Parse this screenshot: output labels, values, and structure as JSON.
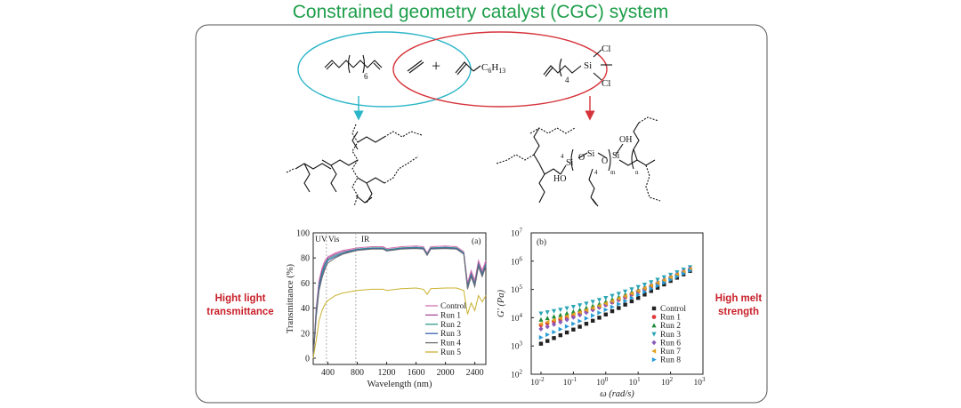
{
  "title": "Constrained geometry catalyst (CGC) system",
  "left_label": [
    "Hight light",
    "transmittance"
  ],
  "right_label": [
    "High melt",
    "strength"
  ],
  "monomers": {
    "diene_sub": "6",
    "hexene_label": "C",
    "hexene_sub": "6",
    "hexene_h": "H",
    "hexene_hsub": "13",
    "silane_sub": "4",
    "silane_si": "Si",
    "silane_cl1": "Cl",
    "silane_cl2": "Cl",
    "plus": "+"
  },
  "structure_right": {
    "si": "Si",
    "o": "O",
    "oh": "OH",
    "ho": "HO",
    "n4a": "4",
    "n4b": "4",
    "m": "m",
    "n": "n"
  },
  "colors": {
    "title": "#1d9e4a",
    "cyan": "#2bb5c8",
    "red": "#d6333a",
    "side_labels": "#c8202a"
  },
  "chart_data": [
    {
      "type": "line",
      "panel_label": "(a)",
      "xlabel": "Wavelength (nm)",
      "ylabel": "Transmittance (%)",
      "xlim": [
        200,
        2550
      ],
      "ylim": [
        -5,
        100
      ],
      "xticks": [
        400,
        800,
        1200,
        1600,
        2000,
        2400
      ],
      "yticks": [
        0,
        20,
        40,
        60,
        80,
        100
      ],
      "region_labels": [
        "UV",
        "Vis",
        "IR"
      ],
      "region_boundaries": [
        380,
        780
      ],
      "legend_position": "bottom-right",
      "x": [
        200,
        240,
        280,
        320,
        360,
        400,
        500,
        600,
        800,
        1000,
        1150,
        1200,
        1400,
        1600,
        1700,
        1750,
        1800,
        2000,
        2150,
        2200,
        2250,
        2300,
        2350,
        2400,
        2450,
        2500,
        2550
      ],
      "series": [
        {
          "name": "Control",
          "color": "#d46fb0",
          "values": [
            0,
            40,
            62,
            72,
            78,
            81,
            84,
            86,
            88,
            89,
            89,
            87.5,
            89,
            89.5,
            89,
            84,
            89,
            89.5,
            89,
            87,
            85,
            60,
            70,
            62,
            78,
            70,
            78
          ]
        },
        {
          "name": "Run 1",
          "color": "#a14a9a",
          "values": [
            0,
            38,
            60,
            70,
            76,
            80,
            83,
            85,
            87,
            88,
            88,
            86.5,
            88,
            88.5,
            88,
            83,
            88,
            88.5,
            88,
            86,
            84,
            58,
            68,
            60,
            76,
            68,
            76
          ]
        },
        {
          "name": "Run 2",
          "color": "#2f9c8c",
          "values": [
            0,
            36,
            58,
            68,
            75,
            79,
            82,
            84,
            87,
            88,
            88,
            86.5,
            88,
            88.5,
            88,
            83,
            88,
            88.5,
            88,
            86,
            84,
            57,
            67,
            59,
            75,
            67,
            75
          ]
        },
        {
          "name": "Run 3",
          "color": "#3b62b0",
          "values": [
            0,
            34,
            56,
            66,
            73,
            78,
            81,
            83.5,
            86.5,
            87.5,
            87.5,
            86,
            87.5,
            88,
            87.5,
            82.5,
            87.5,
            88,
            87.5,
            85.5,
            83.5,
            56,
            66,
            58,
            74,
            66,
            74
          ]
        },
        {
          "name": "Run 4",
          "color": "#6e6e6e",
          "values": [
            0,
            32,
            54,
            64,
            71,
            76,
            80,
            83,
            86,
            87,
            87,
            85.5,
            87,
            87.5,
            87,
            82,
            87,
            87.5,
            87,
            85,
            83,
            55,
            65,
            57,
            73,
            65,
            73
          ]
        },
        {
          "name": "Run 5",
          "color": "#c9b12e",
          "values": [
            0,
            14,
            30,
            38,
            43,
            46,
            50,
            52,
            54,
            55,
            55,
            54,
            55.5,
            56,
            55,
            51,
            55.5,
            56,
            56,
            55,
            54,
            35,
            44,
            38,
            50,
            45,
            50
          ]
        }
      ]
    },
    {
      "type": "scatter",
      "panel_label": "(b)",
      "xlabel": "ω (rad/s)",
      "ylabel": "G' (Pa)",
      "xscale": "log",
      "yscale": "log",
      "xlim": [
        0.005,
        1000
      ],
      "ylim": [
        100,
        10000000
      ],
      "xticks_exp": [
        -2,
        -1,
        0,
        1,
        2,
        3
      ],
      "yticks_exp": [
        2,
        3,
        4,
        5,
        6,
        7
      ],
      "tick_base": "10",
      "legend_position": "bottom-right",
      "x": [
        0.01,
        0.0158,
        0.0251,
        0.0398,
        0.0631,
        0.1,
        0.158,
        0.251,
        0.398,
        0.631,
        1,
        1.58,
        2.51,
        3.98,
        6.31,
        10,
        15.8,
        25.1,
        39.8,
        63.1,
        100,
        158,
        251,
        398
      ],
      "series": [
        {
          "name": "Control",
          "marker": "square",
          "color": "#222222",
          "values": [
            1200,
            1500,
            1900,
            2400,
            3000,
            3800,
            4800,
            6100,
            7800,
            10000,
            13000,
            17000,
            22000,
            29000,
            38000,
            50000,
            66000,
            88000,
            115000,
            150000,
            200000,
            260000,
            340000,
            450000
          ]
        },
        {
          "name": "Run 1",
          "marker": "circle",
          "color": "#e23a3a",
          "values": [
            5500,
            6300,
            7300,
            8500,
            10000,
            11700,
            13800,
            16300,
            19500,
            23500,
            28500,
            35000,
            43000,
            53000,
            66000,
            82000,
            102000,
            127000,
            160000,
            200000,
            250000,
            315000,
            395000,
            500000
          ]
        },
        {
          "name": "Run 2",
          "marker": "triangle-up",
          "color": "#1f8a3a",
          "values": [
            8500,
            9600,
            10900,
            12400,
            14200,
            16300,
            18800,
            22000,
            25800,
            30500,
            36500,
            44000,
            53000,
            65000,
            80000,
            98000,
            120000,
            148000,
            183000,
            225000,
            280000,
            345000,
            430000,
            530000
          ]
        },
        {
          "name": "Run 3",
          "marker": "triangle-down",
          "color": "#2ba5b5",
          "values": [
            14000,
            15500,
            17200,
            19200,
            21500,
            24200,
            27500,
            31500,
            36500,
            42500,
            50000,
            59000,
            70000,
            84000,
            101000,
            122000,
            148000,
            180000,
            220000,
            268000,
            330000,
            405000,
            500000,
            610000
          ]
        },
        {
          "name": "Run 6",
          "marker": "diamond",
          "color": "#8a5ab8",
          "values": [
            4000,
            4800,
            5800,
            7000,
            8500,
            10300,
            12500,
            15300,
            18800,
            23000,
            28500,
            35500,
            44000,
            55000,
            69000,
            86000,
            108000,
            136000,
            171000,
            215000,
            270000,
            340000,
            430000,
            540000
          ]
        },
        {
          "name": "Run 7",
          "marker": "triangle-left",
          "color": "#e0a020",
          "values": [
            6000,
            7000,
            8200,
            9600,
            11300,
            13300,
            15700,
            18600,
            22200,
            26500,
            32000,
            39000,
            47500,
            58000,
            72000,
            89000,
            110000,
            137000,
            171000,
            214000,
            268000,
            336000,
            420000,
            525000
          ]
        },
        {
          "name": "Run 8",
          "marker": "triangle-right",
          "color": "#2a9ad6",
          "values": [
            2000,
            2500,
            3100,
            3900,
            4900,
            6100,
            7600,
            9500,
            11900,
            15000,
            19000,
            24000,
            30500,
            39000,
            50000,
            64000,
            82000,
            105000,
            134000,
            172000,
            220000,
            282000,
            360000,
            460000
          ]
        }
      ]
    }
  ]
}
